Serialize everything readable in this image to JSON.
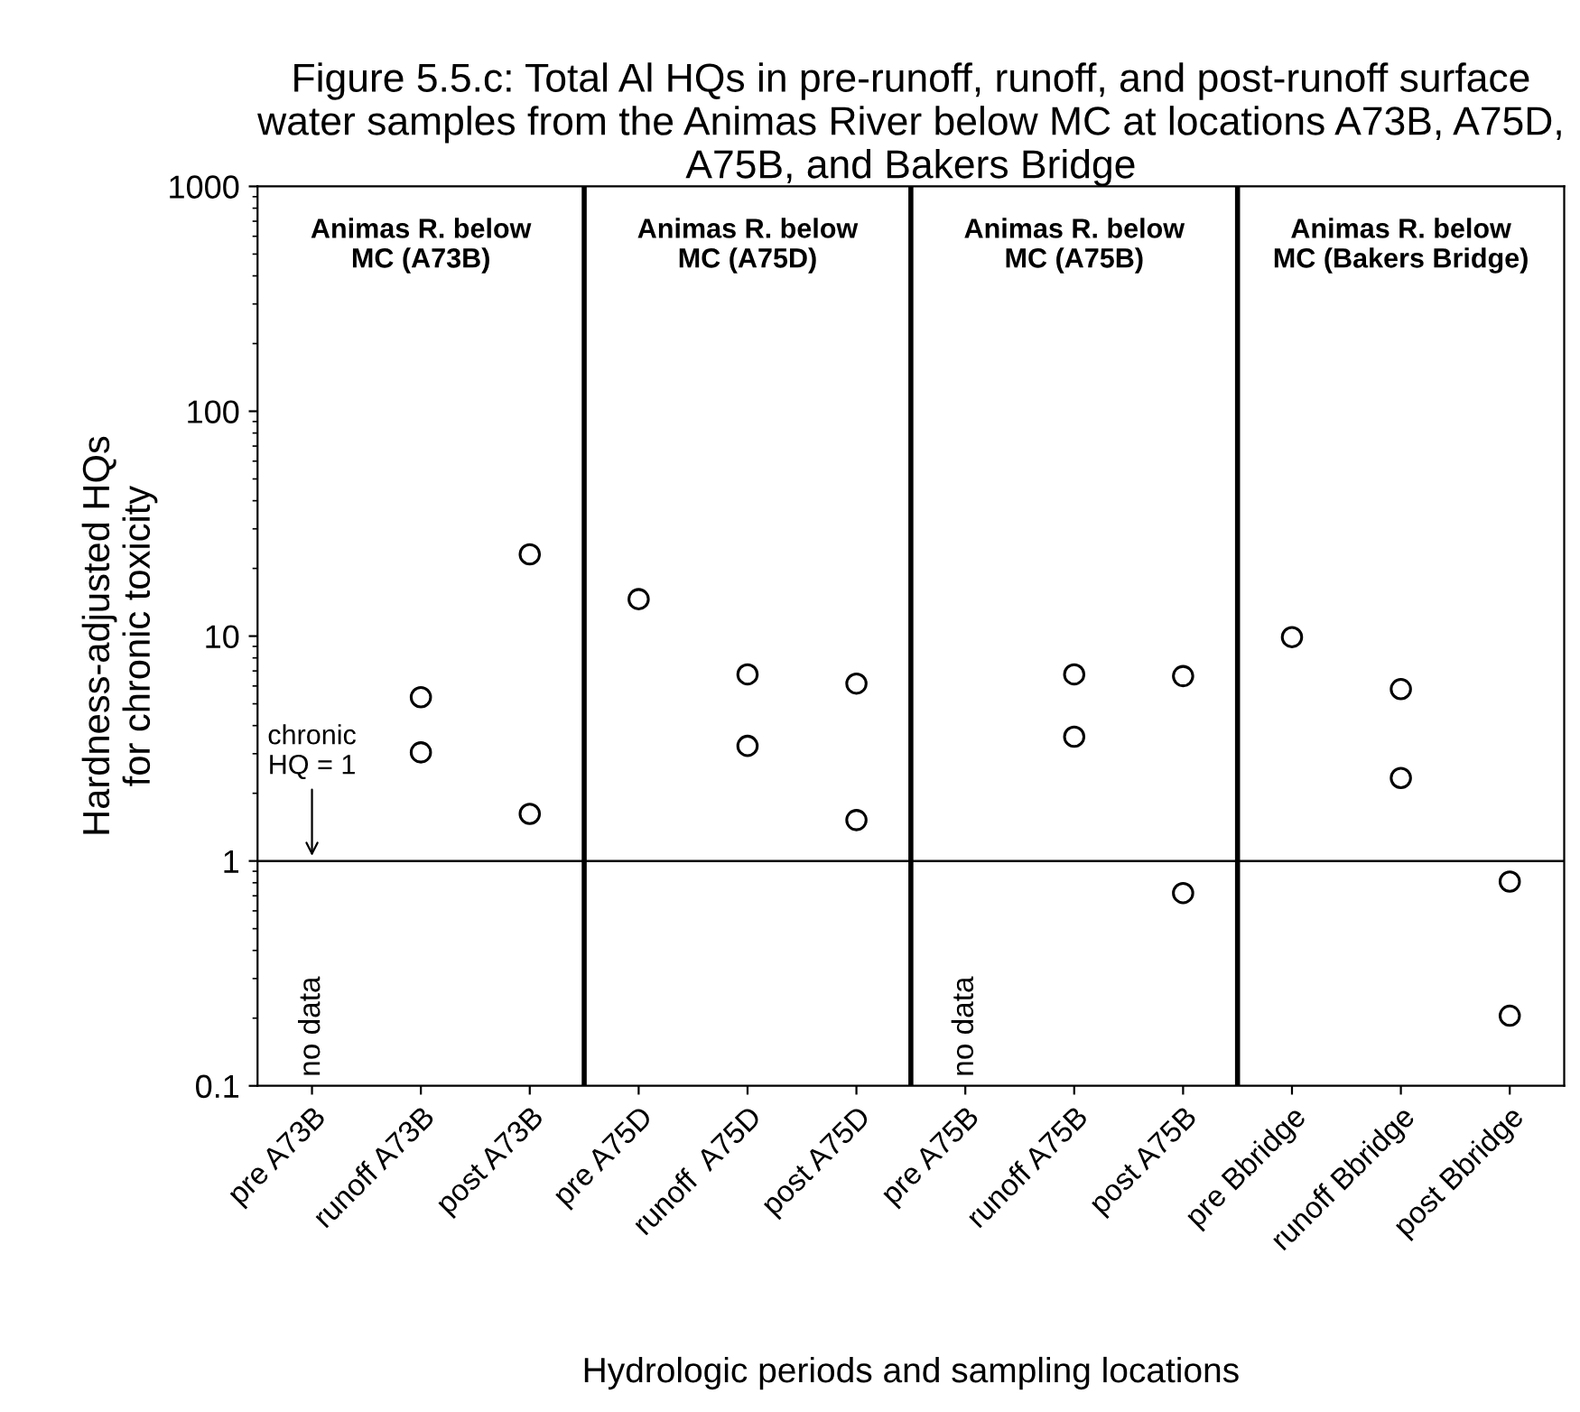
{
  "chart_data": {
    "type": "scatter",
    "title": "Figure 5.5.c: Total Al HQs in pre-runoff, runoff, and post-runoff surface water samples from the Animas River below MC at locations A73B, A75D, A75B, and Bakers Bridge",
    "xlabel": "Hydrologic periods and sampling locations",
    "ylabel": "Hardness-adjusted HQs\nfor chronic toxicity",
    "categories": [
      "pre A73B",
      "runoff A73B",
      "post A73B",
      "pre A75D",
      "runoff  A75D",
      "post A75D",
      "pre A75B",
      "runoff A75B",
      "post A75B",
      "pre Bbridge",
      "runoff Bbridge",
      "post Bbridge"
    ],
    "series": [
      {
        "color": "#000000",
        "values": [
          null,
          5.35,
          23.1,
          14.6,
          6.76,
          6.15,
          null,
          6.76,
          6.64,
          9.9,
          5.81,
          0.81
        ]
      },
      {
        "color": "#000000",
        "values": [
          null,
          3.04,
          1.62,
          null,
          3.25,
          1.52,
          null,
          3.57,
          0.72,
          null,
          2.34,
          0.205
        ]
      }
    ],
    "marker": "circle",
    "log": "y",
    "ylim": [
      0.1,
      1000
    ],
    "yticks": [
      0.1,
      1,
      10,
      100,
      1000
    ],
    "grid": false,
    "ref_lines": [
      {
        "axis": "y",
        "value": 1,
        "label": "chronic\nHQ = 1",
        "color": "#000000"
      }
    ],
    "annotations": [
      "Animas R. below\nMC (A73B)",
      "Animas R. below\nMC (A75D)",
      "Animas R. below\nMC (A75B)",
      "Animas R. below\nMC (Bakers Bridge)",
      "no data",
      "no data"
    ]
  }
}
